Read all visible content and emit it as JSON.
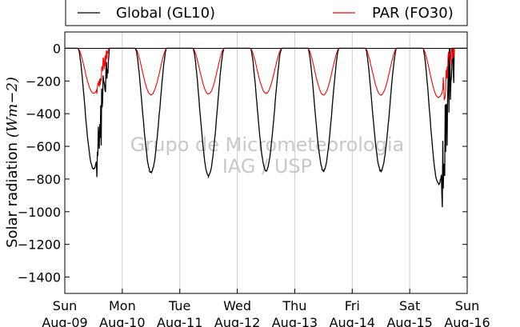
{
  "chart_data": {
    "type": "line",
    "ylabel": "Solar radiation (Wm−2)",
    "ylabel_main": "Solar radiation ",
    "ylabel_unit": "(Wm−2)",
    "ylim": [
      -1500,
      100
    ],
    "yticks": [
      0,
      -200,
      -400,
      -600,
      -800,
      -1000,
      -1200,
      -1400
    ],
    "xlim": [
      "2015-08-09",
      "2015-08-16"
    ],
    "grid": "vertical",
    "legend_placement": "top",
    "x_tick_labels": [
      {
        "day": "Sun",
        "date": "Aug-09"
      },
      {
        "day": "Mon",
        "date": "Aug-10"
      },
      {
        "day": "Tue",
        "date": "Aug-11"
      },
      {
        "day": "Wed",
        "date": "Aug-12"
      },
      {
        "day": "Thu",
        "date": "Aug-13"
      },
      {
        "day": "Fri",
        "date": "Aug-14"
      },
      {
        "day": "Sat",
        "date": "Aug-15"
      },
      {
        "day": "Sun",
        "date": "Aug-16"
      }
    ],
    "watermark": [
      "Grupo de Micrometeorologia",
      "IAG / USP"
    ],
    "series": [
      {
        "name": "Global (GL10)",
        "color": "#000000",
        "daily_minimum": [
          {
            "date": "2015-08-09",
            "value": -740
          },
          {
            "date": "2015-08-10",
            "value": -760
          },
          {
            "date": "2015-08-11",
            "value": -780
          },
          {
            "date": "2015-08-12",
            "value": -750
          },
          {
            "date": "2015-08-13",
            "value": -750
          },
          {
            "date": "2015-08-14",
            "value": -750
          },
          {
            "date": "2015-08-15",
            "value": -830
          }
        ]
      },
      {
        "name": "PAR (FO30)",
        "color": "#ff0000",
        "daily_minimum": [
          {
            "date": "2015-08-09",
            "value": -275
          },
          {
            "date": "2015-08-10",
            "value": -285
          },
          {
            "date": "2015-08-11",
            "value": -280
          },
          {
            "date": "2015-08-12",
            "value": -275
          },
          {
            "date": "2015-08-13",
            "value": -285
          },
          {
            "date": "2015-08-14",
            "value": -285
          },
          {
            "date": "2015-08-15",
            "value": -300
          }
        ]
      }
    ]
  }
}
